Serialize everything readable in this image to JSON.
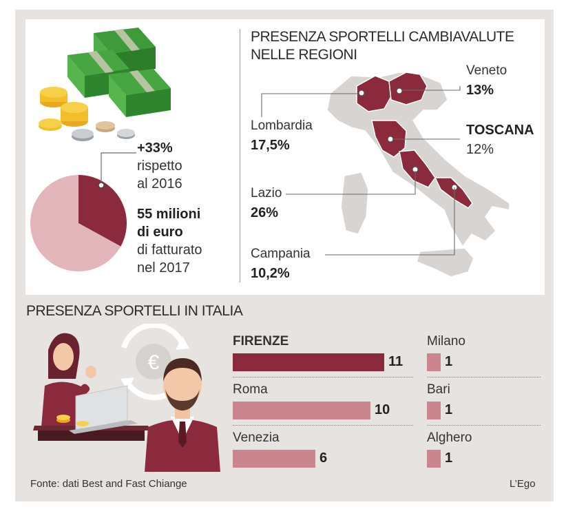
{
  "colors": {
    "dark_red": "#8b2a3c",
    "light_red": "#c9868f",
    "pink": "#e3b6bc",
    "map_grey": "#d7d4d1",
    "panel_bg": "#e6e3e0"
  },
  "revenue": {
    "growth_value": "+33%",
    "growth_line1": "rispetto",
    "growth_line2": "al 2016",
    "amount_line1": "55 milioni",
    "amount_line2": "di euro",
    "amount_line3": "di fatturato",
    "amount_line4": "nel 2017"
  },
  "map": {
    "title_line1": "PRESENZA SPORTELLI CAMBIAVALUTE",
    "title_line2": "NELLE REGIONI",
    "regions": [
      {
        "name": "Lombardia",
        "value": "17,5%"
      },
      {
        "name": "Veneto",
        "value": "13%"
      },
      {
        "name": "TOSCANA",
        "value": "12%"
      },
      {
        "name": "Lazio",
        "value": "26%"
      },
      {
        "name": "Campania",
        "value": "10,2%"
      }
    ]
  },
  "icons": [
    "money-stack-icon",
    "coins-icon",
    "euro-exchange-icon",
    "woman-icon",
    "man-icon",
    "laptop-icon"
  ],
  "bottom_title": "PRESENZA SPORTELLI IN ITALIA",
  "chart_data": [
    {
      "type": "pie",
      "slices": [
        {
          "value": 33,
          "color": "#8b2a3c"
        },
        {
          "value": 67,
          "color": "#e3b6bc"
        }
      ]
    },
    {
      "type": "bar",
      "title": "PRESENZA SPORTELLI IN ITALIA",
      "categories": [
        "FIRENZE",
        "Roma",
        "Venezia",
        "Milano",
        "Bari",
        "Alghero"
      ],
      "values": [
        11,
        10,
        6,
        1,
        1,
        1
      ],
      "value_labels": [
        "11",
        "10",
        "6",
        "1",
        "1",
        "1"
      ]
    }
  ],
  "footer": {
    "source": "Fonte: dati Best and Fast Chiange",
    "brand": "L’Ego"
  }
}
